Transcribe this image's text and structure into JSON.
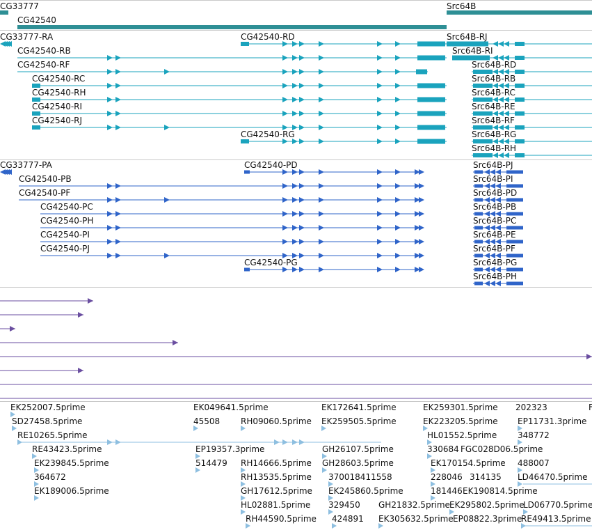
{
  "colors": {
    "gene": "#2e8f95",
    "transcript": "#1aa3bd",
    "cds": "#2f64c9",
    "read": "#6a4ea0",
    "est": "#8ebfe0",
    "divider": "#c9c9c9"
  },
  "genes": [
    "CG33777",
    "CG42540",
    "Src64B"
  ],
  "transcripts_track": {
    "left": [
      "CG33777-RA",
      "CG42540-RB",
      "CG42540-RF",
      "CG42540-RC",
      "CG42540-RH",
      "CG42540-RI",
      "CG42540-RJ"
    ],
    "middle": [
      "CG42540-RD",
      "CG42540-RG"
    ],
    "right": [
      "Src64B-RJ",
      "Src64B-RI",
      "Src64B-RD",
      "Src64B-RB",
      "Src64B-RC",
      "Src64B-RE",
      "Src64B-RF",
      "Src64B-RG",
      "Src64B-RH"
    ]
  },
  "proteins_track": {
    "left": [
      "CG33777-PA",
      "CG42540-PB",
      "CG42540-PF",
      "CG42540-PC",
      "CG42540-PH",
      "CG42540-PI",
      "CG42540-PJ"
    ],
    "middle": [
      "CG42540-PD",
      "CG42540-PG"
    ],
    "right": [
      "Src64B-PJ",
      "Src64B-PI",
      "Src64B-PD",
      "Src64B-PB",
      "Src64B-PC",
      "Src64B-PE",
      "Src64B-PF",
      "Src64B-PG",
      "Src64B-PH"
    ]
  },
  "est_track": {
    "col1": [
      "EK252007.5prime",
      "SD27458.5prime",
      "RE10265.5prime",
      "RE43423.5prime",
      "EK239845.5prime",
      "364672",
      "EK189006.5prime"
    ],
    "col2": [
      "EK049641.5prime",
      "45508",
      "EP19357.3prime",
      "514479"
    ],
    "col3": [
      "RH09060.5prime",
      "RH14666.5prime",
      "RH13535.5prime",
      "GH17612.5prime",
      "HL02881.5prime",
      "RH44590.5prime"
    ],
    "col4": [
      "EK172641.5prime",
      "EK259505.5prime",
      "GH26107.5prime",
      "GH28603.5prime",
      "370018411558",
      "EK245860.5prime",
      "329450",
      "424891"
    ],
    "col5": [
      "GH21832.5prime",
      "EK305632.5prime"
    ],
    "col6": [
      "EK259301.5prime",
      "EK223205.5prime",
      "HL01552.5prime",
      "330684",
      "EK170154.5prime",
      "228046",
      "181446",
      "EK295802.5prime"
    ],
    "col7": [
      "FGC028D06.5prime",
      "314135",
      "EK190814.5prime",
      "EP08822.3prime"
    ],
    "col8": [
      "202323",
      "EP11731.3prime",
      "348772",
      "488007",
      "LD46470.5prime",
      "LD06770.5prime",
      "RE49413.5prime"
    ],
    "edge": "F"
  }
}
